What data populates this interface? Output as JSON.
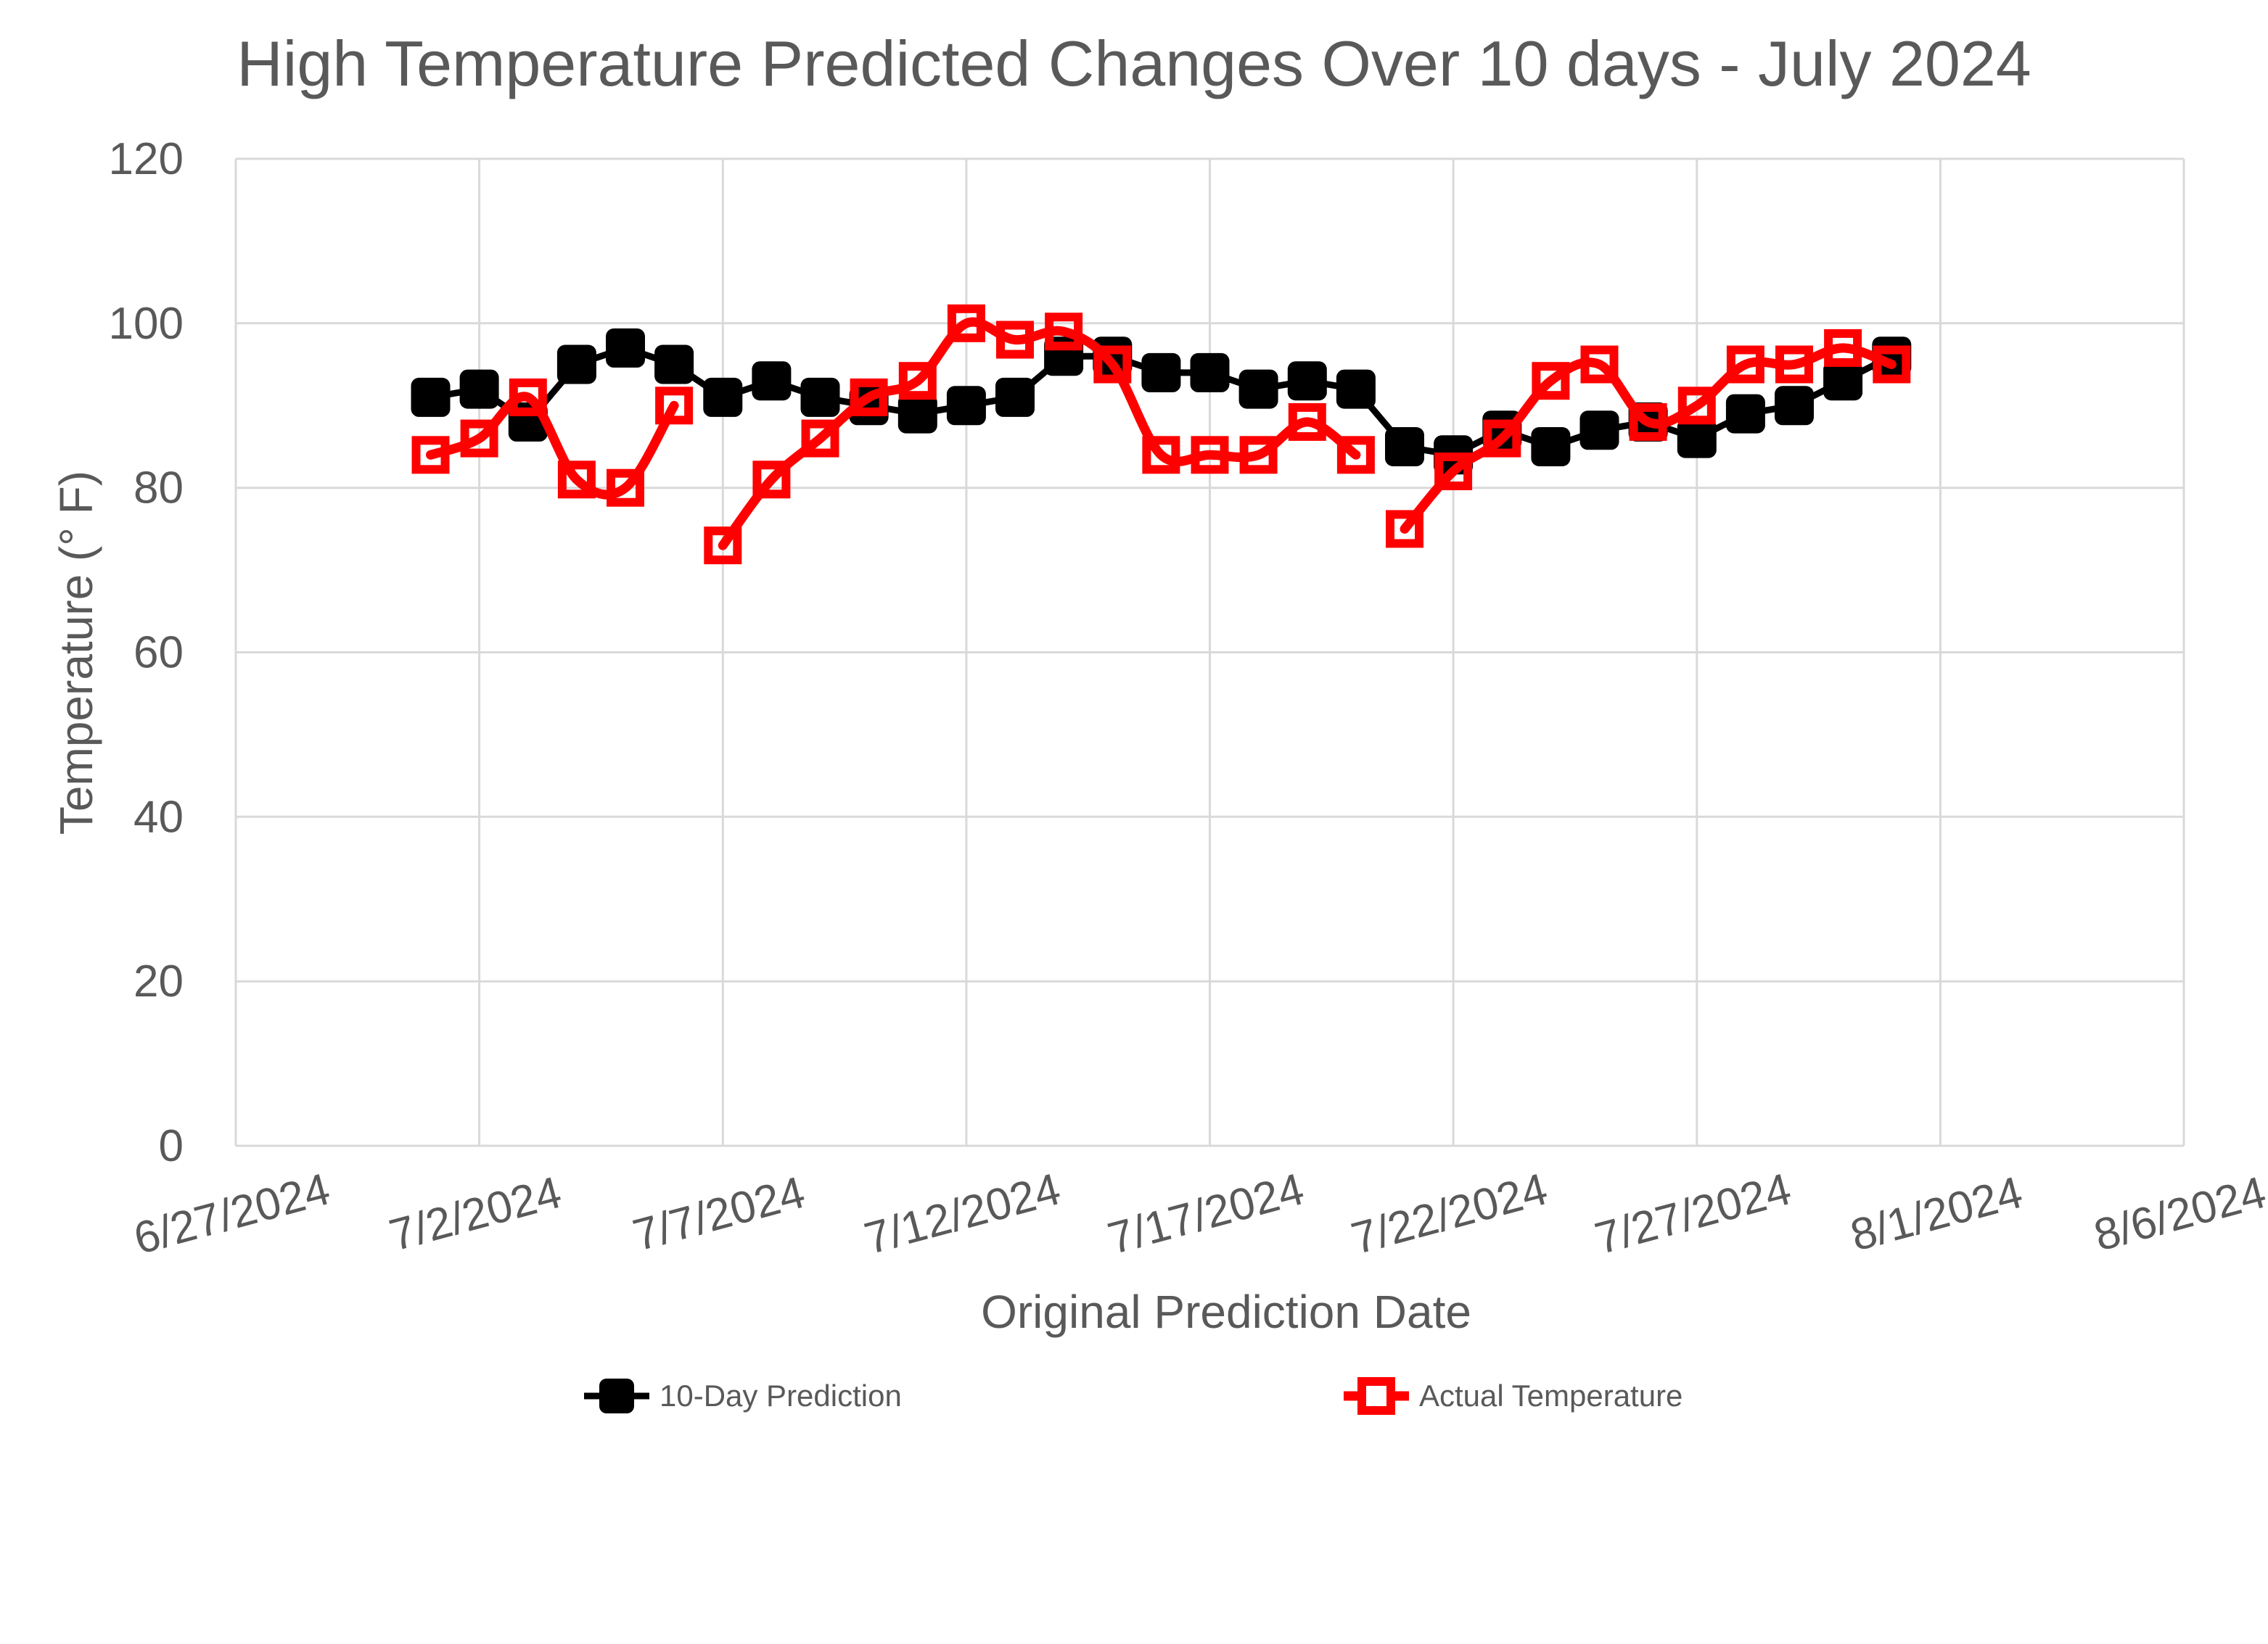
{
  "chart_data": {
    "type": "line",
    "title": "High Temperature Predicted Changes Over 10 days - July 2024",
    "xlabel": "Original Prediction Date",
    "ylabel": "Temperature (° F)",
    "x_tick_labels": [
      "6/27/2024",
      "7/2/2024",
      "7/7/2024",
      "7/12/2024",
      "7/17/2024",
      "7/22/2024",
      "7/27/2024",
      "8/1/2024",
      "8/6/2024"
    ],
    "y_ticks": [
      0,
      20,
      40,
      60,
      80,
      100,
      120
    ],
    "ylim": [
      0,
      120
    ],
    "x_axis_span_days": 40,
    "tick_interval_days": 5,
    "grid": "on",
    "legend_position": "bottom",
    "dates": [
      "7/1/2024",
      "7/2/2024",
      "7/3/2024",
      "7/4/2024",
      "7/5/2024",
      "7/6/2024",
      "7/7/2024",
      "7/8/2024",
      "7/9/2024",
      "7/10/2024",
      "7/11/2024",
      "7/12/2024",
      "7/13/2024",
      "7/14/2024",
      "7/15/2024",
      "7/16/2024",
      "7/17/2024",
      "7/18/2024",
      "7/19/2024",
      "7/20/2024",
      "7/21/2024",
      "7/22/2024",
      "7/23/2024",
      "7/24/2024",
      "7/25/2024",
      "7/26/2024",
      "7/27/2024",
      "7/28/2024",
      "7/29/2024",
      "7/30/2024",
      "7/31/2024"
    ],
    "series": [
      {
        "name": "10-Day Prediction",
        "color": "#000000",
        "marker": "filled-square",
        "smoothed": false,
        "values": [
          91,
          92,
          88,
          95,
          97,
          95,
          91,
          93,
          91,
          90,
          89,
          90,
          91,
          96,
          96,
          94,
          94,
          92,
          93,
          92,
          85,
          84,
          87,
          85,
          87,
          88,
          86,
          89,
          90,
          93,
          96
        ]
      },
      {
        "name": "Actual Temperature",
        "color": "#FF0000",
        "marker": "open-square",
        "smoothed": true,
        "values": [
          84,
          86,
          91,
          81,
          80,
          90,
          73,
          81,
          86,
          91,
          93,
          100,
          98,
          99,
          95,
          84,
          84,
          84,
          88,
          84,
          75,
          82,
          86,
          93,
          95,
          88,
          90,
          95,
          95,
          97,
          95
        ],
        "line_breaks_after": [
          "7/6/2024",
          "7/20/2024"
        ]
      }
    ],
    "styles": {
      "grid_color": "#D9D9D9",
      "text_color": "#595959",
      "background": "#FFFFFF"
    }
  }
}
